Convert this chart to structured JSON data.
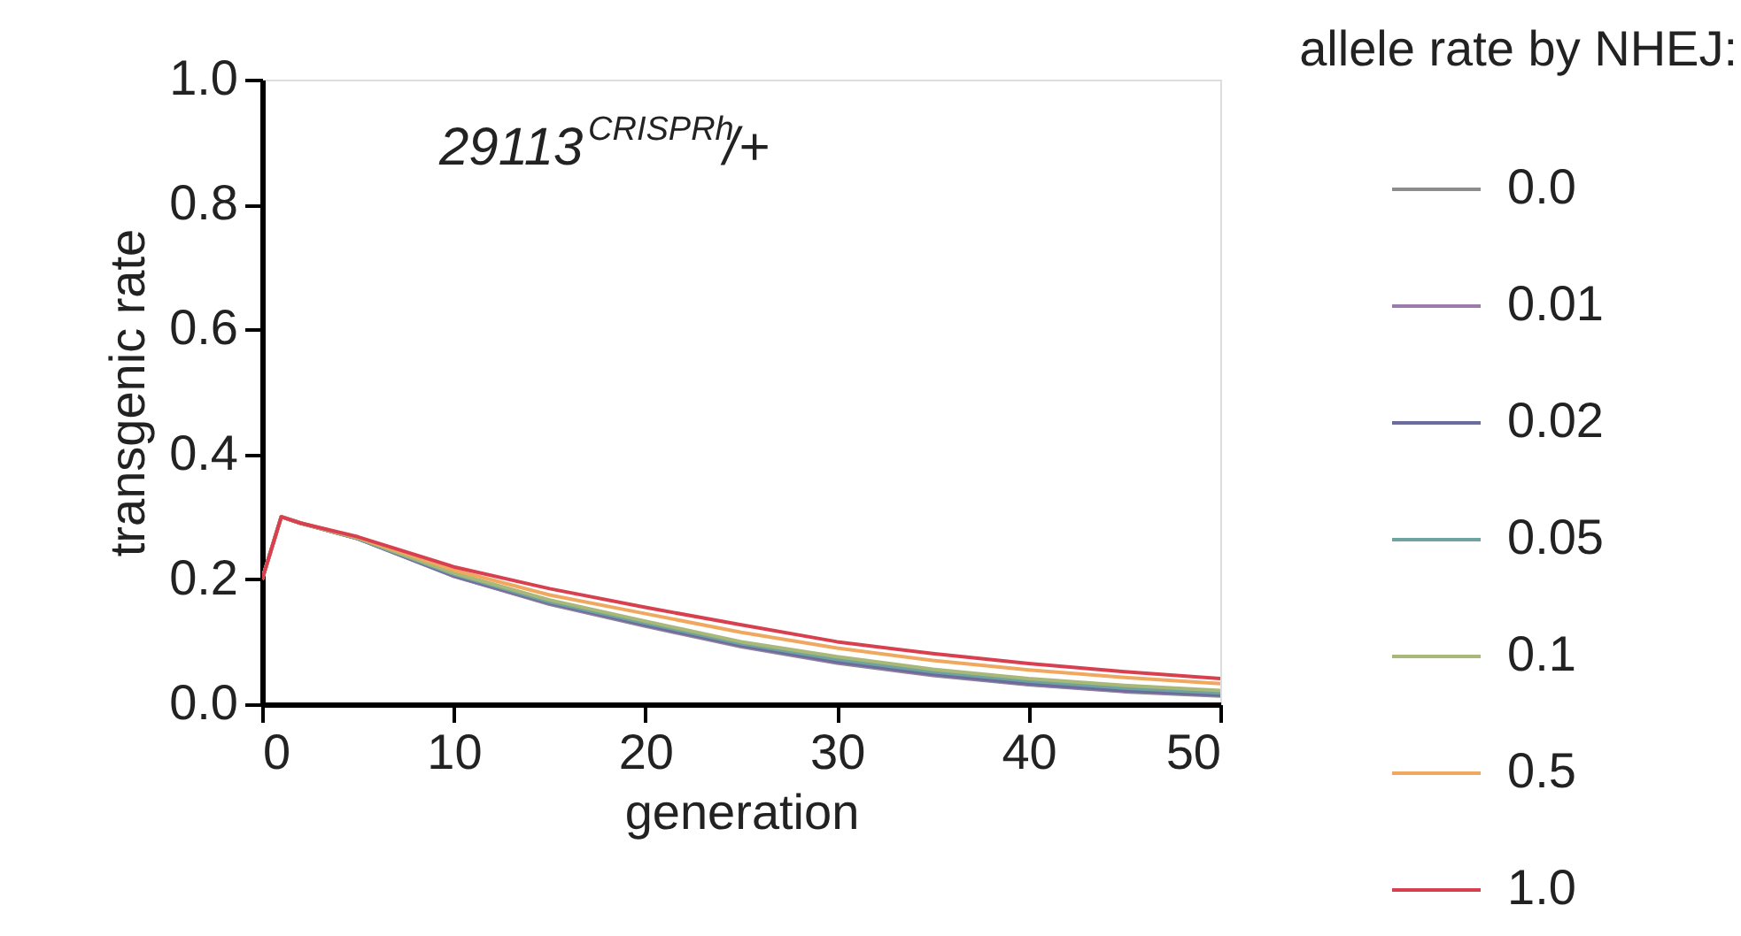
{
  "chart_data": {
    "type": "line",
    "title": "29113$^{CRISPRh}$/+",
    "xlabel": "generation",
    "ylabel": "transgenic rate",
    "legend_title": "allele rate by NHEJ:",
    "x": [
      0,
      1,
      2,
      5,
      10,
      15,
      20,
      25,
      30,
      35,
      40,
      45,
      50
    ],
    "series": [
      {
        "name": "0.0",
        "color": "#8c8c8c",
        "values": [
          0.2,
          0.3,
          0.29,
          0.265,
          0.205,
          0.16,
          0.125,
          0.092,
          0.066,
          0.046,
          0.031,
          0.02,
          0.013
        ]
      },
      {
        "name": "0.01",
        "color": "#9b7bab",
        "values": [
          0.2,
          0.3,
          0.29,
          0.265,
          0.205,
          0.161,
          0.126,
          0.093,
          0.067,
          0.047,
          0.032,
          0.021,
          0.014
        ]
      },
      {
        "name": "0.02",
        "color": "#6b6b9e",
        "values": [
          0.2,
          0.3,
          0.29,
          0.265,
          0.206,
          0.162,
          0.127,
          0.094,
          0.068,
          0.048,
          0.033,
          0.022,
          0.015
        ]
      },
      {
        "name": "0.05",
        "color": "#6fa3a0",
        "values": [
          0.2,
          0.3,
          0.29,
          0.265,
          0.208,
          0.164,
          0.13,
          0.097,
          0.072,
          0.052,
          0.037,
          0.026,
          0.018
        ]
      },
      {
        "name": "0.1",
        "color": "#a8b878",
        "values": [
          0.2,
          0.3,
          0.29,
          0.266,
          0.21,
          0.167,
          0.133,
          0.1,
          0.076,
          0.056,
          0.041,
          0.03,
          0.022
        ]
      },
      {
        "name": "0.5",
        "color": "#f0a860",
        "values": [
          0.2,
          0.3,
          0.29,
          0.267,
          0.215,
          0.175,
          0.145,
          0.115,
          0.09,
          0.07,
          0.055,
          0.043,
          0.033
        ]
      },
      {
        "name": "1.0",
        "color": "#d84050",
        "values": [
          0.2,
          0.3,
          0.29,
          0.268,
          0.22,
          0.185,
          0.155,
          0.127,
          0.1,
          0.081,
          0.065,
          0.052,
          0.041
        ]
      }
    ],
    "xlim": [
      0,
      50
    ],
    "xticks": [
      0,
      10,
      20,
      30,
      40,
      50
    ],
    "ylim": [
      0,
      1.0
    ],
    "yticks": [
      {
        "value": 0,
        "label": "0.0"
      },
      {
        "value": 0.2,
        "label": "0.2"
      },
      {
        "value": 0.4,
        "label": "0.4"
      },
      {
        "value": 0.6,
        "label": "0.6"
      },
      {
        "value": 0.8,
        "label": "0.8"
      },
      {
        "value": 1.0,
        "label": "1.0"
      }
    ],
    "grid": false,
    "legend": "right",
    "marker": "none",
    "line_style": "solid"
  }
}
